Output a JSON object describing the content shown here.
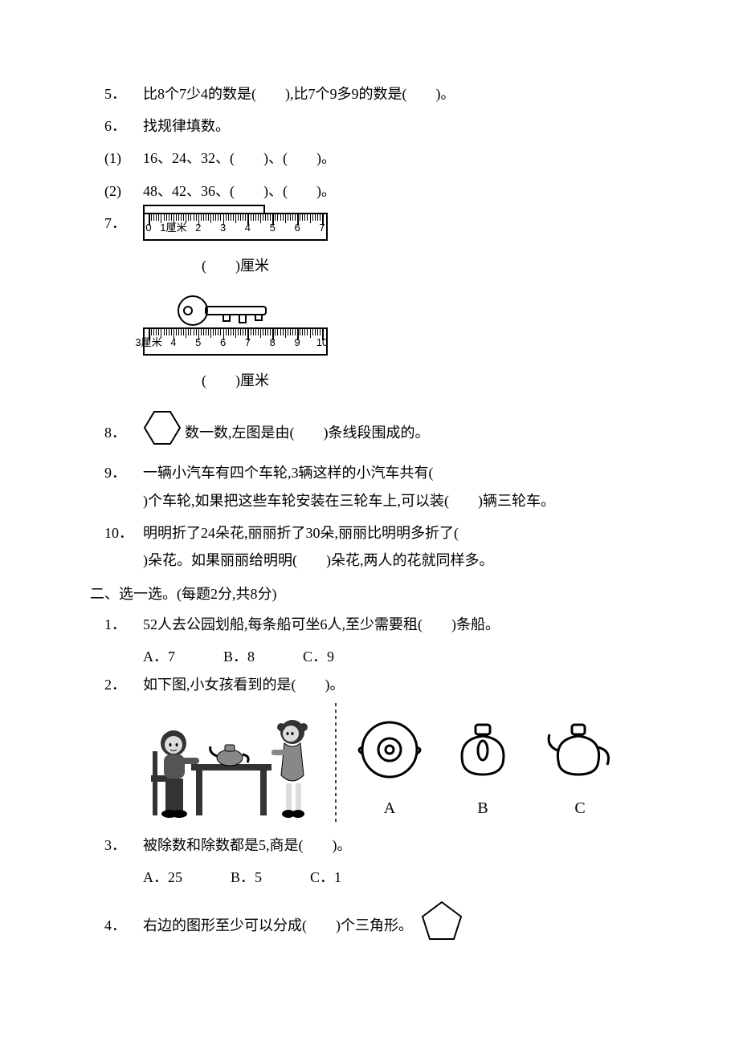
{
  "q5": {
    "num": "5．",
    "text": "比8个7少4的数是(　　),比7个9多9的数是(　　)。"
  },
  "q6": {
    "num": "6．",
    "text": "找规律填数。",
    "sub1_num": "(1)",
    "sub1_text": "16、24、32、(　　)、(　　)。",
    "sub2_num": "(2)",
    "sub2_text": "48、42、36、(　　)、(　　)。"
  },
  "q7": {
    "num": "7．",
    "ruler1_labels": [
      "0",
      "1厘米",
      "2",
      "3",
      "4",
      "5",
      "6",
      "7"
    ],
    "caption1": "(　　)厘米",
    "ruler2_labels": [
      "3厘米",
      "4",
      "5",
      "6",
      "7",
      "8",
      "9",
      "10"
    ],
    "caption2": "(　　)厘米"
  },
  "q8": {
    "num": "8．",
    "text": "数一数,左图是由(　　)条线段围成的。"
  },
  "q9": {
    "num": "9．",
    "line1": "一辆小汽车有四个车轮,3辆这样的小汽车共有(",
    "line2": ")个车轮,如果把这些车轮安装在三轮车上,可以装(　　)辆三轮车。"
  },
  "q10": {
    "num": "10．",
    "line1": "明明折了24朵花,丽丽折了30朵,丽丽比明明多折了(",
    "line2": ")朵花。如果丽丽给明明(　　)朵花,两人的花就同样多。"
  },
  "section2": {
    "title": "二、选一选。(每题2分,共8分)"
  },
  "s2q1": {
    "num": "1．",
    "text": "52人去公园划船,每条船可坐6人,至少需要租(　　)条船。",
    "optA": "A．7",
    "optB": "B．8",
    "optC": "C．9"
  },
  "s2q2": {
    "num": "2．",
    "text": "如下图,小女孩看到的是(　　)。",
    "labelA": "A",
    "labelB": "B",
    "labelC": "C"
  },
  "s2q3": {
    "num": "3．",
    "text": "被除数和除数都是5,商是(　　)。",
    "optA": "A．25",
    "optB": "B．5",
    "optC": "C．1"
  },
  "s2q4": {
    "num": "4．",
    "text": "右边的图形至少可以分成(　　)个三角形。"
  },
  "colors": {
    "text": "#000000",
    "bg": "#ffffff",
    "stroke": "#000000"
  }
}
